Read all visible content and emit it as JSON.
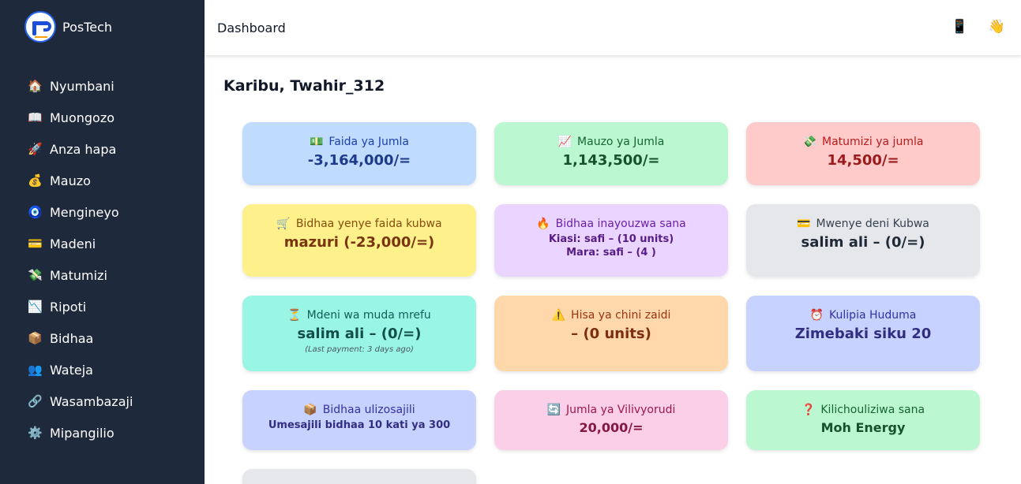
{
  "app": {
    "name": "PosTech"
  },
  "sidebar": {
    "items": [
      {
        "icon": "🏠",
        "label": "Nyumbani"
      },
      {
        "icon": "📖",
        "label": "Muongozo"
      },
      {
        "icon": "🚀",
        "label": "Anza hapa"
      },
      {
        "icon": "💰",
        "label": "Mauzo"
      },
      {
        "icon": "🧿",
        "label": "Mengineyo"
      },
      {
        "icon": "💳",
        "label": "Madeni"
      },
      {
        "icon": "💸",
        "label": "Matumizi"
      },
      {
        "icon": "📉",
        "label": "Ripoti"
      },
      {
        "icon": "📦",
        "label": "Bidhaa"
      },
      {
        "icon": "👥",
        "label": "Wateja"
      },
      {
        "icon": "🔗",
        "label": "Wasambazaji"
      },
      {
        "icon": "⚙️",
        "label": "Mipangilio"
      }
    ]
  },
  "topbar": {
    "title": "Dashboard",
    "phone_icon": "📱",
    "wave_icon": "👋"
  },
  "main": {
    "greeting": "Karibu, Twahir_312",
    "cards": {
      "faida": {
        "icon": "💵",
        "label": "Faida ya Jumla",
        "value": "-3,164,000/="
      },
      "mauzo": {
        "icon": "📈",
        "label": "Mauzo ya Jumla",
        "value": "1,143,500/="
      },
      "matumizi": {
        "icon": "💸",
        "label": "Matumizi ya jumla",
        "value": "14,500/="
      },
      "bidhaa_faida": {
        "icon": "🛒",
        "label": "Bidhaa yenye faida kubwa",
        "value": "mazuri (-23,000/=)"
      },
      "inayouzwa": {
        "icon": "🔥",
        "label": "Bidhaa inayouzwa sana",
        "line1": "Kiasi: safi – (10 units)",
        "line2": "Mara: safi – (4 )"
      },
      "deni": {
        "icon": "💳",
        "label": "Mwenye deni Kubwa",
        "value": "salim ali – (0/=)"
      },
      "mdeni": {
        "icon": "⏳",
        "label": "Mdeni wa muda mrefu",
        "value": "salim ali – (0/=)",
        "note": "(Last payment: 3 days ago)"
      },
      "hisa": {
        "icon": "⚠️",
        "label": "Hisa ya chini zaidi",
        "value": "– (0 units)"
      },
      "huduma": {
        "icon": "⏰",
        "label": "Kulipia Huduma",
        "value": "Zimebaki siku 20"
      },
      "ulizosajili": {
        "icon": "📦",
        "label": "Bidhaa ulizosajili",
        "value": "Umesajili bidhaa 10 kati ya 300"
      },
      "vilivyorudi": {
        "icon": "🔄",
        "label": "Jumla ya Vilivyorudi",
        "value": "20,000/="
      },
      "kilichouliziwa": {
        "icon": "❓",
        "label": "Kilichouliziwa sana",
        "value": "Moh Energy"
      }
    }
  }
}
